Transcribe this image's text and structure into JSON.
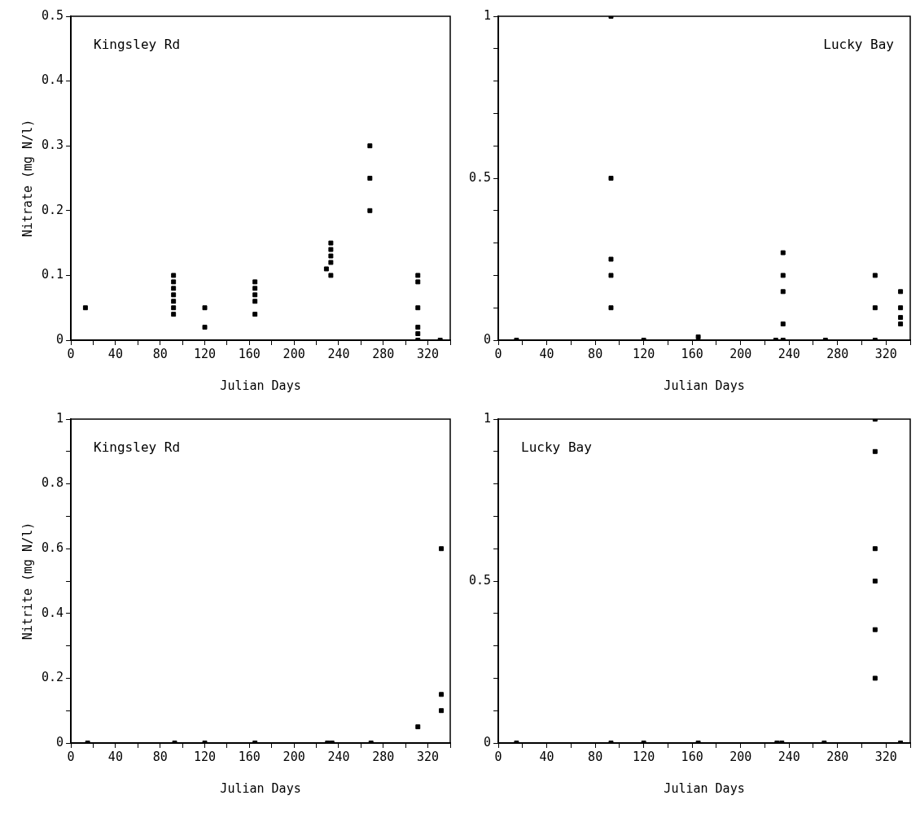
{
  "chart_data": [
    {
      "type": "scatter",
      "annotations": [
        "Kingsley Rd"
      ],
      "xlabel": "Julian Days",
      "ylabel": "Nitrate (mg N/l)",
      "color": "#000000",
      "marker": "square",
      "grid": false,
      "legend": false,
      "x": [
        13,
        92,
        92,
        92,
        92,
        92,
        92,
        92,
        120,
        120,
        165,
        165,
        165,
        165,
        165,
        229,
        233,
        233,
        233,
        233,
        233,
        268,
        268,
        268,
        311,
        311,
        311,
        311,
        311,
        311,
        331
      ],
      "values": [
        0.05,
        0.04,
        0.05,
        0.06,
        0.07,
        0.08,
        0.09,
        0.1,
        0.05,
        0.02,
        0.04,
        0.06,
        0.07,
        0.08,
        0.09,
        0.11,
        0.1,
        0.12,
        0.13,
        0.14,
        0.15,
        0.3,
        0.25,
        0.2,
        0.1,
        0.09,
        0.05,
        0.02,
        0.01,
        0,
        0
      ],
      "xlim": [
        0,
        340
      ],
      "xticks": [
        0,
        {
          "value": 20,
          "label": null
        },
        40,
        {
          "value": 60,
          "label": null
        },
        80,
        {
          "value": 100,
          "label": null
        },
        120,
        {
          "value": 140,
          "label": null
        },
        160,
        {
          "value": 180,
          "label": null
        },
        200,
        {
          "value": 220,
          "label": null
        },
        240,
        {
          "value": 260,
          "label": null
        },
        280,
        {
          "value": 300,
          "label": null
        },
        320,
        {
          "value": 340,
          "label": null
        }
      ],
      "ylim": [
        0,
        0.5
      ],
      "yticks": [
        0,
        0.1,
        0.2,
        0.3,
        0.4,
        0.5
      ]
    },
    {
      "type": "scatter",
      "annotations": [
        "Lucky Bay"
      ],
      "xlabel": "Julian Days",
      "color": "#000000",
      "marker": "square",
      "grid": false,
      "legend": false,
      "x": [
        15,
        93,
        93,
        93,
        93,
        93,
        120,
        165,
        229,
        235,
        235,
        235,
        235,
        235,
        270,
        311,
        311,
        311,
        332,
        332,
        332,
        332
      ],
      "values": [
        0,
        1,
        0.5,
        0.25,
        0.2,
        0.1,
        0,
        0.01,
        0,
        0.27,
        0.2,
        0.15,
        0.05,
        0,
        0,
        0.2,
        0.1,
        0,
        0.15,
        0.1,
        0.07,
        0.05
      ],
      "xlim": [
        0,
        340
      ],
      "xticks": [
        0,
        {
          "value": 20,
          "label": null
        },
        40,
        {
          "value": 60,
          "label": null
        },
        80,
        {
          "value": 100,
          "label": null
        },
        120,
        {
          "value": 140,
          "label": null
        },
        160,
        {
          "value": 180,
          "label": null
        },
        200,
        {
          "value": 220,
          "label": null
        },
        240,
        {
          "value": 260,
          "label": null
        },
        280,
        {
          "value": 300,
          "label": null
        },
        320,
        {
          "value": 340,
          "label": null
        }
      ],
      "ylim": [
        0,
        1
      ],
      "yticks": [
        0,
        {
          "value": 0.1,
          "label": null
        },
        {
          "value": 0.2,
          "label": null
        },
        {
          "value": 0.3,
          "label": null
        },
        {
          "value": 0.4,
          "label": null
        },
        0.5,
        {
          "value": 0.6,
          "label": null
        },
        {
          "value": 0.7,
          "label": null
        },
        {
          "value": 0.8,
          "label": null
        },
        {
          "value": 0.9,
          "label": null
        },
        1
      ]
    },
    {
      "type": "scatter",
      "annotations": [
        "Kingsley Rd"
      ],
      "xlabel": "Julian Days",
      "ylabel": "Nitrite (mg N/l)",
      "color": "#000000",
      "marker": "square",
      "grid": false,
      "legend": false,
      "x": [
        15,
        93,
        120,
        165,
        230,
        234,
        269,
        311,
        332,
        332,
        332
      ],
      "values": [
        0,
        0,
        0,
        0,
        0,
        0,
        0,
        0.05,
        0.6,
        0.15,
        0.1
      ],
      "xlim": [
        0,
        340
      ],
      "xticks": [
        0,
        {
          "value": 20,
          "label": null
        },
        40,
        {
          "value": 60,
          "label": null
        },
        80,
        {
          "value": 100,
          "label": null
        },
        120,
        {
          "value": 140,
          "label": null
        },
        160,
        {
          "value": 180,
          "label": null
        },
        200,
        {
          "value": 220,
          "label": null
        },
        240,
        {
          "value": 260,
          "label": null
        },
        280,
        {
          "value": 300,
          "label": null
        },
        320,
        {
          "value": 340,
          "label": null
        }
      ],
      "ylim": [
        0,
        1
      ],
      "yticks": [
        0,
        {
          "value": 0.1,
          "label": null
        },
        0.2,
        {
          "value": 0.3,
          "label": null
        },
        0.4,
        {
          "value": 0.5,
          "label": null
        },
        0.6,
        {
          "value": 0.7,
          "label": null
        },
        0.8,
        {
          "value": 0.9,
          "label": null
        },
        1
      ]
    },
    {
      "type": "scatter",
      "annotations": [
        "Lucky Bay"
      ],
      "xlabel": "Julian Days",
      "color": "#000000",
      "marker": "square",
      "grid": false,
      "legend": false,
      "x": [
        15,
        93,
        120,
        165,
        230,
        234,
        269,
        332,
        311,
        311,
        311,
        311,
        311,
        311
      ],
      "values": [
        0,
        0,
        0,
        0,
        0,
        0,
        0,
        0,
        1,
        0.9,
        0.6,
        0.5,
        0.35,
        0.2
      ],
      "xlim": [
        0,
        340
      ],
      "xticks": [
        0,
        {
          "value": 20,
          "label": null
        },
        40,
        {
          "value": 60,
          "label": null
        },
        80,
        {
          "value": 100,
          "label": null
        },
        120,
        {
          "value": 140,
          "label": null
        },
        160,
        {
          "value": 180,
          "label": null
        },
        200,
        {
          "value": 220,
          "label": null
        },
        240,
        {
          "value": 260,
          "label": null
        },
        280,
        {
          "value": 300,
          "label": null
        },
        320,
        {
          "value": 340,
          "label": null
        }
      ],
      "ylim": [
        0,
        1
      ],
      "yticks": [
        0,
        {
          "value": 0.1,
          "label": null
        },
        {
          "value": 0.2,
          "label": null
        },
        {
          "value": 0.3,
          "label": null
        },
        {
          "value": 0.4,
          "label": null
        },
        0.5,
        {
          "value": 0.6,
          "label": null
        },
        {
          "value": 0.7,
          "label": null
        },
        {
          "value": 0.8,
          "label": null
        },
        {
          "value": 0.9,
          "label": null
        },
        1
      ]
    }
  ]
}
